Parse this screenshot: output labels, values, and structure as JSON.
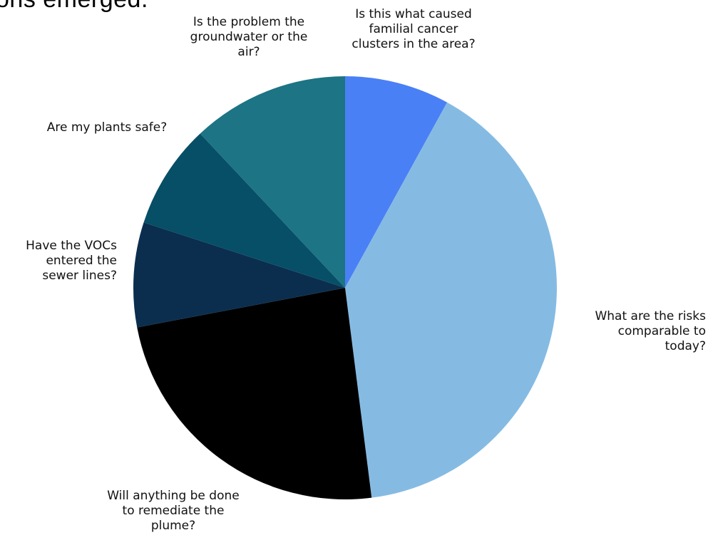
{
  "page": {
    "title_fragment": "ons emerged."
  },
  "chart_data": {
    "type": "pie",
    "title": "",
    "start_angle_deg": 90,
    "direction": "clockwise",
    "slices": [
      {
        "label": "Is this what caused familial cancer clusters in the area?",
        "value": 8,
        "color": "#4A80F5"
      },
      {
        "label": "What are the risks comparable to today?",
        "value": 40,
        "color": "#85BBE3"
      },
      {
        "label": "Will anything be done to remediate the plume?",
        "value": 24,
        "color": "#000000"
      },
      {
        "label": "Have the VOCs entered the sewer lines?",
        "value": 8,
        "color": "#0B2E4E"
      },
      {
        "label": "Are my plants safe?",
        "value": 8,
        "color": "#064F66"
      },
      {
        "label": "Is the problem the groundwater or the air?",
        "value": 12,
        "color": "#1C7484"
      }
    ]
  }
}
